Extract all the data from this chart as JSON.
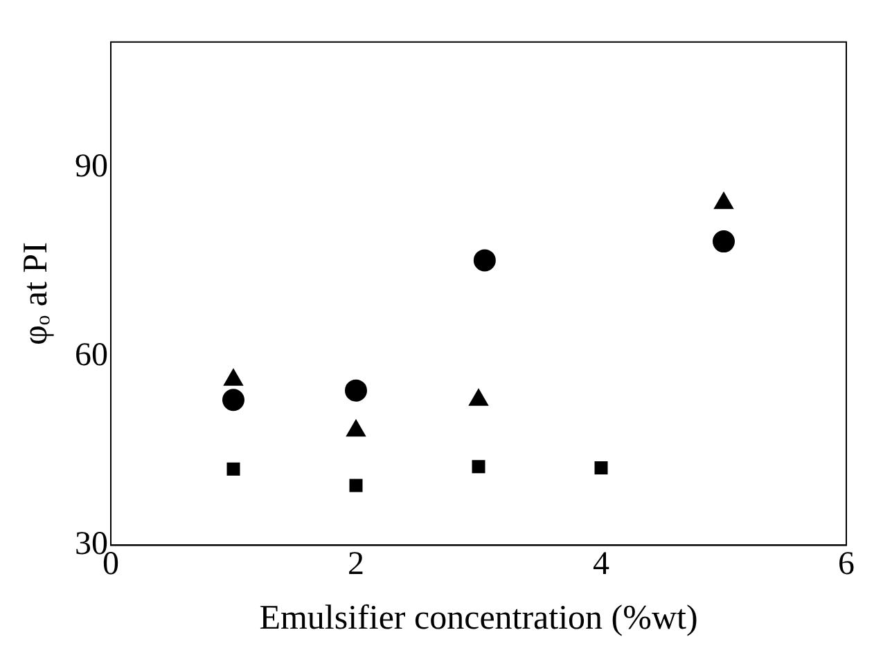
{
  "chart_data": {
    "type": "scatter",
    "xlabel": "Emulsifier concentration (%wt)",
    "ylabel": "φₒ at PI",
    "xlim": [
      0,
      6
    ],
    "xticks": [
      0,
      2,
      4,
      6
    ],
    "ylim": [
      30,
      110
    ],
    "yticks": [
      30,
      60,
      90
    ],
    "grid": false,
    "legend": false,
    "series": [
      {
        "color": "#000000",
        "marker": "triangle",
        "x": [
          1,
          2,
          3,
          5
        ],
        "values": [
          56.3,
          48.2,
          53.1,
          84.4
        ]
      },
      {
        "color": "#000000",
        "marker": "circle",
        "x": [
          1,
          2,
          3.05,
          5
        ],
        "values": [
          53.1,
          54.6,
          75.3,
          78.3
        ]
      },
      {
        "color": "#000000",
        "marker": "square",
        "x": [
          1,
          2,
          3,
          4
        ],
        "values": [
          42.1,
          39.5,
          42.5,
          42.3
        ]
      }
    ]
  }
}
